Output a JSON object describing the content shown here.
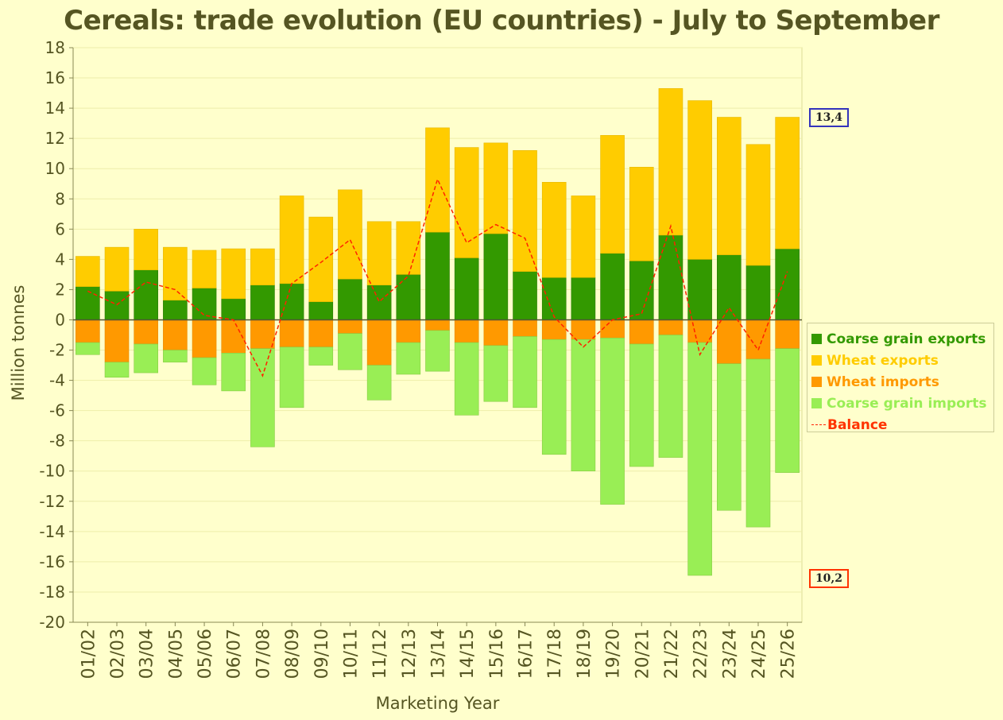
{
  "title": "Cereals: trade evolution (EU countries) - July to September",
  "callouts": {
    "top": "13,4",
    "bottom": "10,2"
  },
  "colors": {
    "coarse_exports": "#339900",
    "wheat_exports": "#ffcc00",
    "wheat_imports": "#ff9900",
    "coarse_imports": "#99ee55",
    "balance": "#ff2200",
    "callout_top_border": "#3333bb",
    "callout_bottom_border": "#ff3300"
  },
  "legend": [
    {
      "label": "Coarse grain exports",
      "color": "#339900",
      "text_color": "#339900",
      "kind": "box"
    },
    {
      "label": "Wheat exports",
      "color": "#ffcc00",
      "text_color": "#ffcc00",
      "kind": "box"
    },
    {
      "label": "Wheat imports",
      "color": "#ff9900",
      "text_color": "#ff9900",
      "kind": "box"
    },
    {
      "label": "Coarse grain imports",
      "color": "#99ee55",
      "text_color": "#99ee55",
      "kind": "box"
    },
    {
      "label": "Balance",
      "color": "#ff2200",
      "text_color": "#ff3300",
      "kind": "line"
    }
  ],
  "chart_data": {
    "type": "bar",
    "stacked": true,
    "xlabel": "Marketing Year",
    "ylabel": "Million tonnes",
    "ylim": [
      -20,
      18
    ],
    "yticks": [
      18,
      16,
      14,
      12,
      10,
      8,
      6,
      4,
      2,
      0,
      -2,
      -4,
      -6,
      -8,
      -10,
      -12,
      -14,
      -16,
      -18,
      -20
    ],
    "grid": true,
    "legend_position": "right",
    "categories": [
      "01/02",
      "02/03",
      "03/04",
      "04/05",
      "05/06",
      "06/07",
      "07/08",
      "08/09",
      "09/10",
      "10/11",
      "11/12",
      "12/13",
      "13/14",
      "14/15",
      "15/16",
      "16/17",
      "17/18",
      "18/19",
      "19/20",
      "20/21",
      "21/22",
      "22/23",
      "23/24",
      "24/25",
      "25/26"
    ],
    "series": [
      {
        "name": "Coarse grain exports",
        "values": [
          2.2,
          1.9,
          3.3,
          1.3,
          2.1,
          1.4,
          2.3,
          2.4,
          1.2,
          2.7,
          2.3,
          3.0,
          5.8,
          4.1,
          5.7,
          3.2,
          2.8,
          2.8,
          4.4,
          3.9,
          5.6,
          4.0,
          4.3,
          3.6,
          4.7
        ]
      },
      {
        "name": "Wheat exports",
        "values": [
          2.0,
          2.9,
          2.7,
          3.5,
          2.5,
          3.3,
          2.4,
          5.8,
          5.6,
          5.9,
          4.2,
          3.5,
          6.9,
          7.3,
          6.0,
          8.0,
          6.3,
          5.4,
          7.8,
          6.2,
          9.7,
          10.5,
          9.1,
          8.0,
          8.7
        ]
      },
      {
        "name": "Wheat imports",
        "values": [
          -1.5,
          -2.8,
          -1.6,
          -2.0,
          -2.5,
          -2.2,
          -1.9,
          -1.8,
          -1.8,
          -0.9,
          -3.0,
          -1.5,
          -0.7,
          -1.5,
          -1.7,
          -1.1,
          -1.3,
          -1.3,
          -1.2,
          -1.6,
          -1.0,
          -1.5,
          -2.9,
          -2.6,
          -1.9
        ]
      },
      {
        "name": "Coarse grain imports",
        "values": [
          -0.8,
          -1.0,
          -1.9,
          -0.8,
          -1.8,
          -2.5,
          -6.5,
          -4.0,
          -1.2,
          -2.4,
          -2.3,
          -2.1,
          -2.7,
          -4.8,
          -3.7,
          -4.7,
          -7.6,
          -8.7,
          -11.0,
          -8.1,
          -8.1,
          -15.4,
          -9.7,
          -11.1,
          -8.2
        ]
      },
      {
        "name": "Balance",
        "type": "line",
        "values": [
          1.9,
          1.0,
          2.5,
          2.0,
          0.3,
          0.0,
          -3.7,
          2.4,
          3.8,
          5.3,
          1.2,
          2.9,
          9.3,
          5.1,
          6.3,
          5.4,
          0.2,
          -1.8,
          0.0,
          0.4,
          6.2,
          -2.3,
          0.8,
          -2.0,
          3.2
        ]
      }
    ]
  }
}
